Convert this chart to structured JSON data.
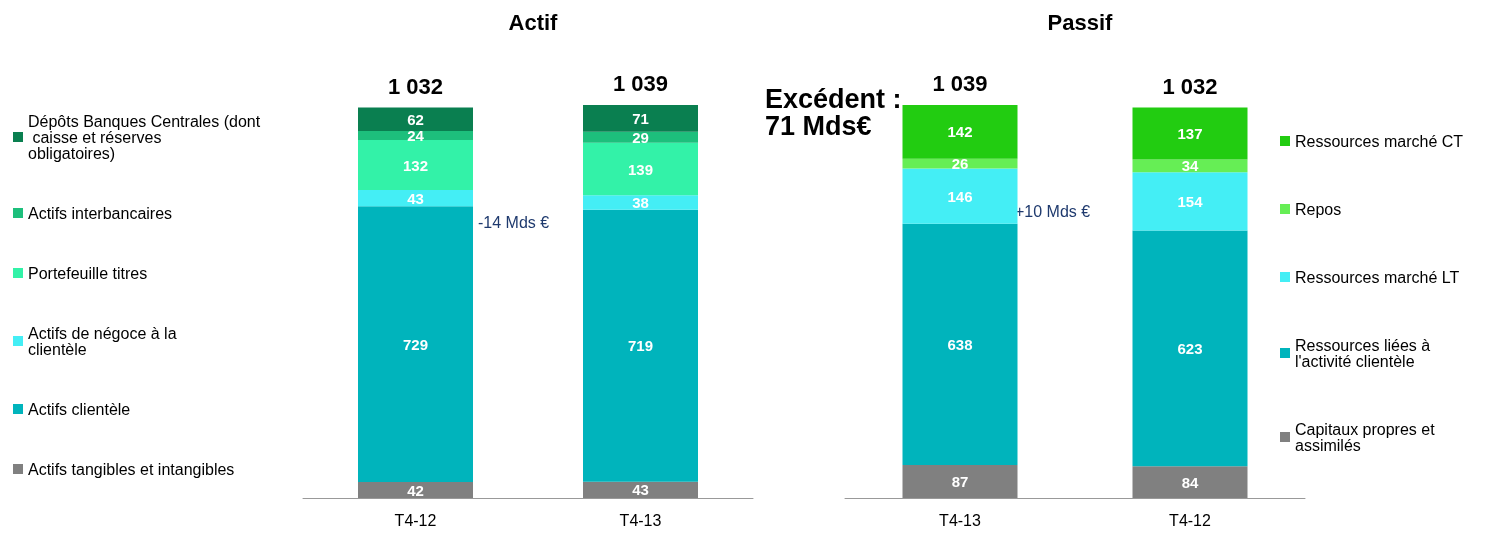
{
  "chart_data": [
    {
      "type": "bar",
      "title": "Actif",
      "categories": [
        "T4-12",
        "T4-13"
      ],
      "stacked": true,
      "data_labels": true,
      "legend": "left",
      "grid": false,
      "tick_labels": "x",
      "totals": [
        "1 032",
        "1 039"
      ],
      "annotations": [
        "-14 Mds €"
      ],
      "series": [
        {
          "name": "Actifs tangibles et intangibles",
          "color": "#808080",
          "values": [
            42,
            43
          ]
        },
        {
          "name": "Actifs clientèle",
          "color": "#00b4bc",
          "values": [
            729,
            719
          ]
        },
        {
          "name": "Actifs de négoce à la clientèle",
          "color": "#44eef5",
          "values": [
            43,
            38
          ]
        },
        {
          "name": "Portefeuille titres",
          "color": "#33f2a8",
          "values": [
            132,
            139
          ]
        },
        {
          "name": "Actifs interbancaires",
          "color": "#1dbf7c",
          "values": [
            24,
            29
          ]
        },
        {
          "name": "Dépôts Banques Centrales (dont caisse et réserves obligatoires)",
          "color": "#0a7f50",
          "values": [
            62,
            71
          ]
        }
      ]
    },
    {
      "type": "bar",
      "title": "Passif",
      "categories": [
        "T4-13",
        "T4-12"
      ],
      "stacked": true,
      "data_labels": true,
      "legend": "right",
      "grid": false,
      "tick_labels": "x",
      "totals": [
        "1 039",
        "1 032"
      ],
      "annotations": [
        "Excédent : 71 Mds€",
        "+10 Mds €"
      ],
      "series": [
        {
          "name": "Capitaux propres et assimilés",
          "color": "#808080",
          "values": [
            87,
            84
          ]
        },
        {
          "name": "Ressources liées à l'activité clientèle",
          "color": "#00b4bc",
          "values": [
            638,
            623
          ]
        },
        {
          "name": "Ressources marché LT",
          "color": "#44eef5",
          "values": [
            146,
            154
          ]
        },
        {
          "name": "Repos",
          "color": "#66ee55",
          "values": [
            26,
            34
          ]
        },
        {
          "name": "Ressources marché CT",
          "color": "#22cc11",
          "values": [
            142,
            137
          ]
        }
      ]
    }
  ]
}
